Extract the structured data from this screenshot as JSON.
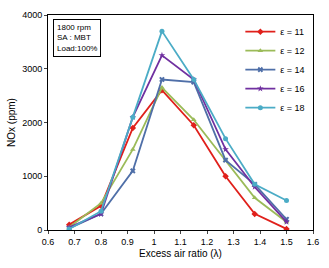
{
  "chart_data": {
    "type": "line",
    "x_label": "Excess air ratio (λ)",
    "y_label": "NOx (ppm)",
    "annotations": [
      "1800 rpm",
      "SA : MBT",
      "Load:100%"
    ],
    "x": [
      0.68,
      0.8,
      0.92,
      1.03,
      1.15,
      1.27,
      1.38,
      1.5
    ],
    "series": [
      {
        "name": "ε = 11",
        "color": "#e0201b",
        "marker": "diamond",
        "values": [
          100,
          450,
          1900,
          2600,
          1950,
          1000,
          300,
          20
        ]
      },
      {
        "name": "ε = 12",
        "color": "#9bbb59",
        "marker": "triangle-up",
        "values": [
          50,
          500,
          1500,
          2650,
          2050,
          1300,
          600,
          150
        ]
      },
      {
        "name": "ε = 14",
        "color": "#4f6fa8",
        "marker": "x",
        "values": [
          30,
          300,
          1100,
          2800,
          2750,
          1300,
          850,
          200
        ]
      },
      {
        "name": "ε = 16",
        "color": "#7030a0",
        "marker": "star",
        "values": [
          50,
          300,
          2100,
          3250,
          2800,
          1500,
          800,
          150
        ]
      },
      {
        "name": "ε = 18",
        "color": "#4bacc6",
        "marker": "circle",
        "values": [
          20,
          350,
          2100,
          3700,
          2800,
          1700,
          850,
          550
        ]
      }
    ],
    "xlim": [
      0.6,
      1.6
    ],
    "xticks": [
      0.6,
      0.7,
      0.8,
      0.9,
      1,
      1.1,
      1.2,
      1.3,
      1.4,
      1.5,
      1.6
    ],
    "ylim": [
      0,
      4000
    ],
    "yticks": [
      0,
      1000,
      2000,
      3000,
      4000
    ],
    "grid": false,
    "legend": "top right"
  }
}
